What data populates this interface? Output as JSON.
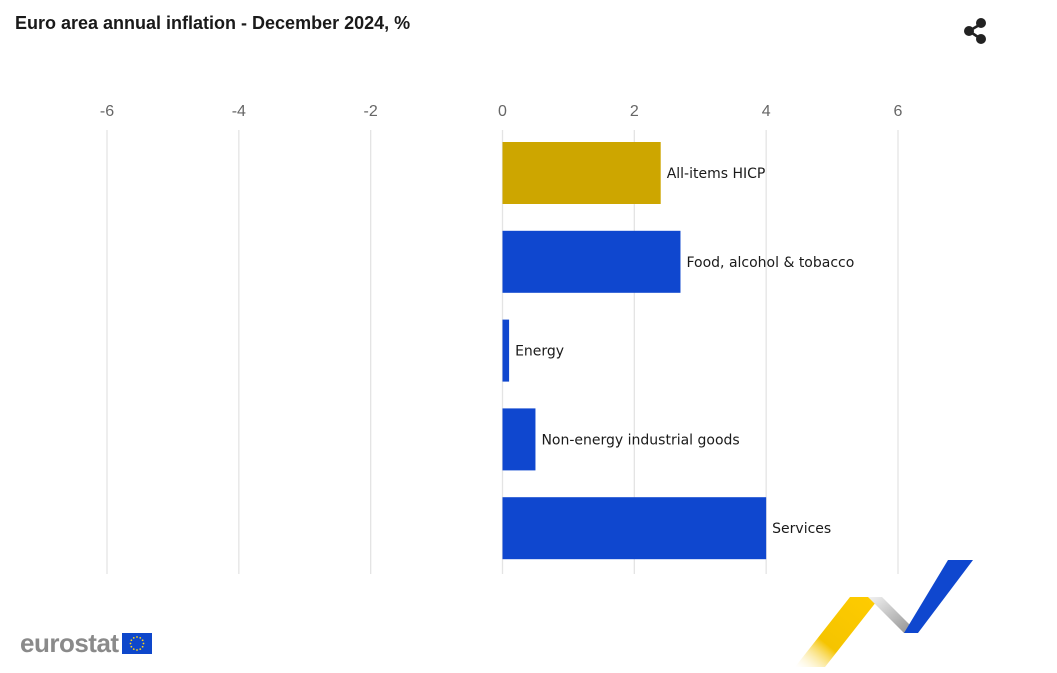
{
  "title": "Euro area annual inflation - December 2024, %",
  "share": {
    "icon": "share-icon"
  },
  "brand": {
    "name": "eurostat",
    "flag_icon": "eu-flag-icon"
  },
  "colors": {
    "highlight": "#CDA600",
    "bar": "#0F47CF",
    "grid": "#E4E4E4",
    "tick_text": "#666666"
  },
  "chart_data": {
    "type": "bar",
    "orientation": "horizontal",
    "title": "Euro area annual inflation - December 2024, %",
    "categories": [
      "All-items HICP",
      "Food, alcohol & tobacco",
      "Energy",
      "Non-energy industrial goods",
      "Services"
    ],
    "values": [
      2.4,
      2.7,
      0.1,
      0.5,
      4.0
    ],
    "highlight_index": 0,
    "xlim": [
      -6,
      6
    ],
    "xticks": [
      -6,
      -4,
      -2,
      0,
      2,
      4,
      6
    ],
    "xlabel": "",
    "ylabel": "",
    "grid": true,
    "axis_position": "top",
    "legend": "none"
  }
}
